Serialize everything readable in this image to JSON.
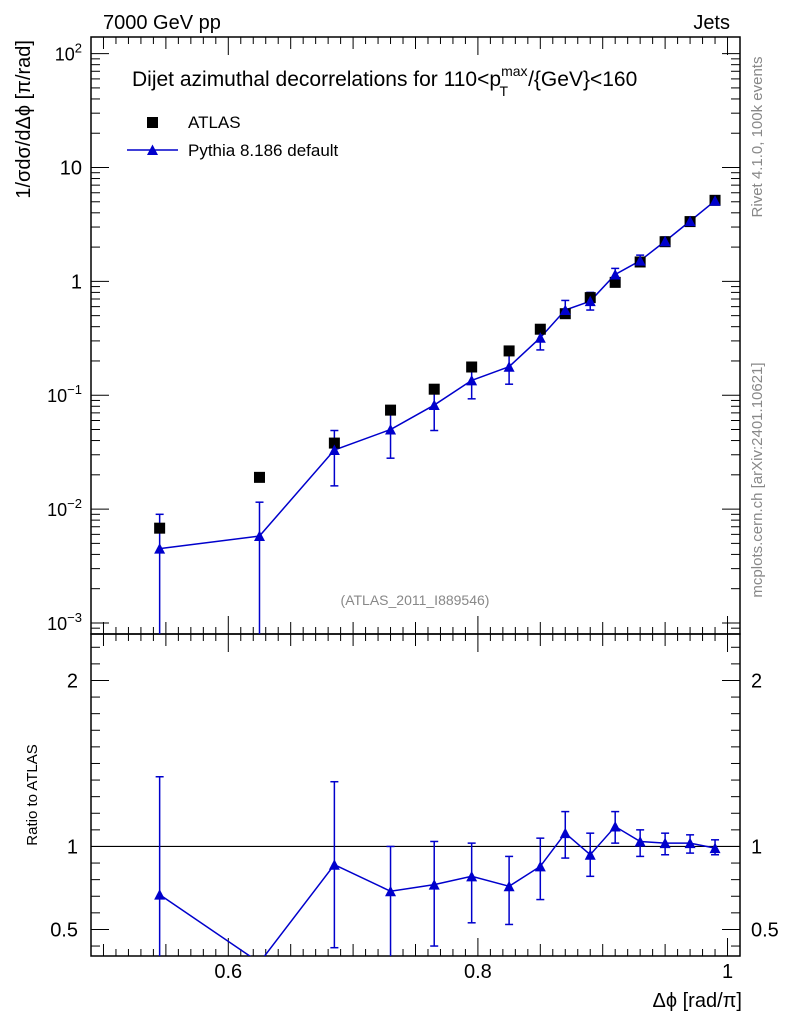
{
  "header": {
    "left": "7000 GeV pp",
    "right": "Jets"
  },
  "side_labels": {
    "rivet": "Rivet 4.1.0,  100k events",
    "mcplots": "mcplots.cern.ch [arXiv:2401.10621]"
  },
  "chart_data": {
    "type": "scatter",
    "title": "Dijet azimuthal decorrelations for 110<p_T^max/{GeV}<160",
    "title_parts": {
      "pre": "Dijet azimuthal decorrelations for 110<p",
      "sup": "max",
      "sub": "T",
      "post": "/{GeV}<160"
    },
    "analysis_label": "(ATLAS_2011_I889546)",
    "xlabel": "Δϕ [rad/π]",
    "ylabel": "1/σdσ/dΔϕ [π/rad]",
    "ratio_ylabel": "Ratio to ATLAS",
    "xlim": [
      0.49,
      1.01
    ],
    "ylim": [
      0.0008,
      140
    ],
    "ratio_ylim": [
      0.34,
      2.28
    ],
    "x_ticks": [
      "0.6",
      "0.8",
      "1"
    ],
    "y_ticks": [
      "10^-3",
      "10^-2",
      "10^-1",
      "1",
      "10",
      "10^2"
    ],
    "ratio_ticks": [
      "0.5",
      "1",
      "2"
    ],
    "legend": {
      "data_label": "ATLAS",
      "mc_label": "Pythia 8.186 default",
      "placement": "top-left"
    },
    "x": [
      0.545,
      0.625,
      0.685,
      0.73,
      0.765,
      0.795,
      0.825,
      0.85,
      0.87,
      0.89,
      0.91,
      0.93,
      0.95,
      0.97,
      0.99
    ],
    "series": [
      {
        "name": "ATLAS",
        "values": [
          0.0068,
          0.019,
          0.038,
          0.074,
          0.113,
          0.177,
          0.245,
          0.38,
          0.52,
          0.72,
          0.98,
          1.48,
          2.23,
          3.35,
          5.15
        ]
      },
      {
        "name": "Pythia 8.186 default",
        "values": [
          0.0045,
          0.0058,
          0.033,
          0.05,
          0.082,
          0.135,
          0.178,
          0.32,
          0.56,
          0.67,
          1.15,
          1.52,
          2.25,
          3.38,
          5.1
        ],
        "err_lo": [
          0.0008,
          0.0008,
          0.016,
          0.028,
          0.049,
          0.093,
          0.125,
          0.25,
          0.48,
          0.56,
          1.02,
          1.36,
          2.08,
          3.2,
          4.88
        ],
        "err_hi": [
          0.009,
          0.0115,
          0.049,
          0.074,
          0.117,
          0.18,
          0.235,
          0.41,
          0.68,
          0.8,
          1.3,
          1.7,
          2.45,
          3.6,
          5.35
        ]
      }
    ],
    "ratio": {
      "values": [
        0.71,
        0.3,
        0.89,
        0.73,
        0.77,
        0.82,
        0.76,
        0.88,
        1.08,
        0.95,
        1.12,
        1.03,
        1.02,
        1.02,
        0.99
      ],
      "err_lo": [
        0.3,
        0.3,
        0.39,
        0.3,
        0.4,
        0.54,
        0.53,
        0.68,
        0.93,
        0.82,
        1.02,
        0.94,
        0.95,
        0.96,
        0.95
      ],
      "err_hi": [
        1.42,
        0.3,
        1.39,
        1.0,
        1.03,
        1.02,
        0.94,
        1.05,
        1.21,
        1.08,
        1.21,
        1.1,
        1.08,
        1.07,
        1.04
      ]
    }
  }
}
